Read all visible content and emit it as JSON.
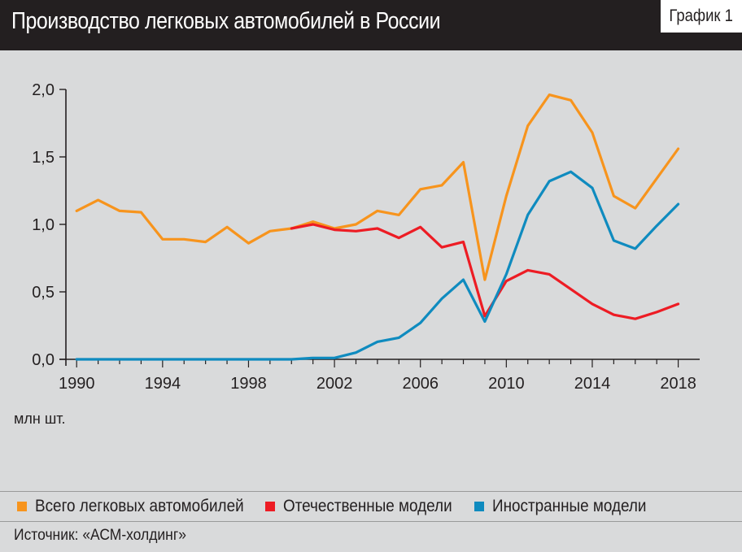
{
  "header": {
    "title": "Производство легковых автомобилей в России",
    "graph_label": "График 1"
  },
  "unit_label": "млн шт.",
  "source": "Источник: «АСМ-холдинг»",
  "legend": [
    {
      "label": "Всего легковых автомобилей",
      "color": "#f7941d"
    },
    {
      "label": "Отечественные модели",
      "color": "#ed1c24"
    },
    {
      "label": "Иностранные модели",
      "color": "#0f8bbf"
    }
  ],
  "chart_data": {
    "type": "line",
    "title": "Производство легковых автомобилей в России",
    "ylabel": "млн шт.",
    "xlim": [
      1989.5,
      2019
    ],
    "ylim": [
      0,
      2.0
    ],
    "x_ticks": [
      1990,
      1994,
      1998,
      2002,
      2006,
      2010,
      2014,
      2018
    ],
    "y_ticks": [
      0,
      0.5,
      1.0,
      1.5,
      2.0
    ],
    "y_tick_labels": [
      "0,0",
      "0,5",
      "1,0",
      "1,5",
      "2,0"
    ],
    "grid": false,
    "legend_position": "bottom",
    "x": [
      1990,
      1991,
      1992,
      1993,
      1994,
      1995,
      1996,
      1997,
      1998,
      1999,
      2000,
      2001,
      2002,
      2003,
      2004,
      2005,
      2006,
      2007,
      2008,
      2009,
      2010,
      2011,
      2012,
      2013,
      2014,
      2015,
      2016,
      2017,
      2018
    ],
    "series": [
      {
        "name": "Всего легковых автомобилей",
        "color": "#f7941d",
        "values": [
          1.1,
          1.18,
          1.1,
          1.09,
          0.89,
          0.89,
          0.87,
          0.98,
          0.86,
          0.95,
          0.97,
          1.02,
          0.97,
          1.0,
          1.1,
          1.07,
          1.26,
          1.29,
          1.46,
          0.59,
          1.21,
          1.73,
          1.96,
          1.92,
          1.68,
          1.21,
          1.12,
          1.34,
          1.56
        ]
      },
      {
        "name": "Отечественные модели",
        "color": "#ed1c24",
        "values": [
          null,
          null,
          null,
          null,
          null,
          null,
          null,
          null,
          null,
          null,
          0.97,
          1.0,
          0.96,
          0.95,
          0.97,
          0.9,
          0.98,
          0.83,
          0.87,
          0.32,
          0.58,
          0.66,
          0.63,
          0.52,
          0.41,
          0.33,
          0.3,
          0.35,
          0.41
        ]
      },
      {
        "name": "Иностранные модели",
        "color": "#0f8bbf",
        "values": [
          0,
          0,
          0,
          0,
          0,
          0,
          0,
          0,
          0,
          0,
          0,
          0.01,
          0.01,
          0.05,
          0.13,
          0.16,
          0.27,
          0.45,
          0.59,
          0.28,
          0.63,
          1.07,
          1.32,
          1.39,
          1.27,
          0.88,
          0.82,
          0.99,
          1.15
        ]
      }
    ]
  }
}
